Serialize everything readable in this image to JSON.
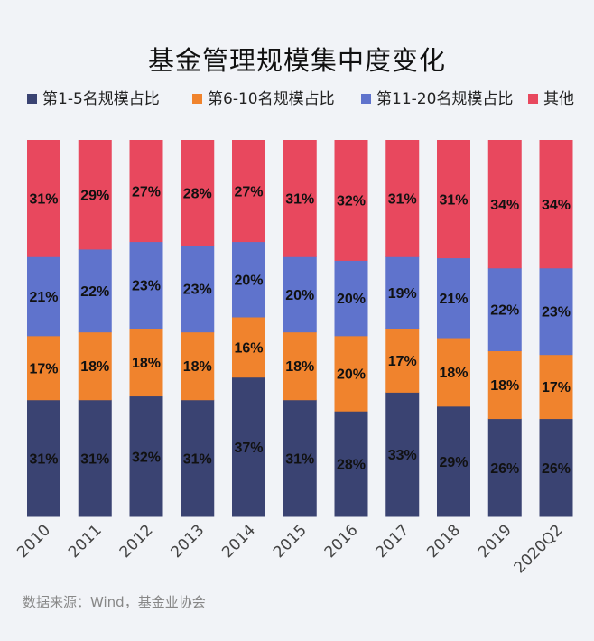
{
  "colors": {
    "s1": "#3a4372",
    "s2": "#f0832d",
    "s3": "#5f73cc",
    "s4": "#e8485e"
  },
  "source": "数据来源：Wind，基金业协会",
  "chart_data": {
    "type": "bar",
    "stacked": true,
    "title": "基金管理规模集中度变化",
    "categories": [
      "2010",
      "2011",
      "2012",
      "2013",
      "2014",
      "2015",
      "2016",
      "2017",
      "2018",
      "2019",
      "2020Q2"
    ],
    "series": [
      {
        "name": "第1-5名规模占比",
        "values": [
          31,
          31,
          32,
          31,
          37,
          31,
          28,
          33,
          29,
          26,
          26
        ]
      },
      {
        "name": "第6-10名规模占比",
        "values": [
          17,
          18,
          18,
          18,
          16,
          18,
          20,
          17,
          18,
          18,
          17
        ]
      },
      {
        "name": "第11-20名规模占比",
        "values": [
          21,
          22,
          23,
          23,
          20,
          20,
          20,
          19,
          21,
          22,
          23
        ]
      },
      {
        "name": "其他",
        "values": [
          31,
          29,
          27,
          28,
          27,
          31,
          32,
          31,
          31,
          34,
          34
        ]
      }
    ],
    "value_suffix": "%",
    "ylim": [
      0,
      100
    ],
    "legend": "top",
    "grid": false
  }
}
